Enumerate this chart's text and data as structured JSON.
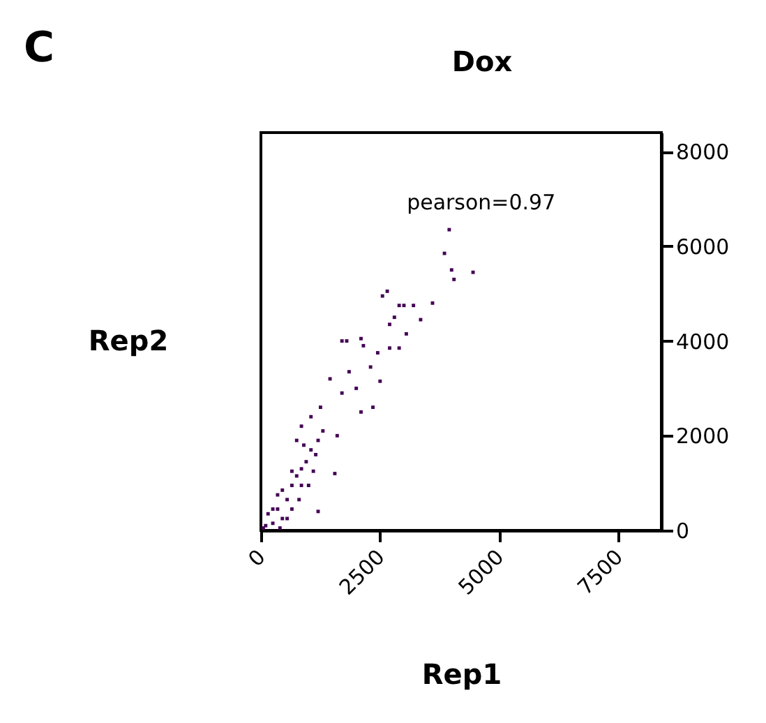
{
  "chart_data": {
    "type": "scatter",
    "title": "Dox",
    "xlabel": "Rep1",
    "ylabel": "Rep2",
    "annotations": [
      "C",
      "pearson=0.97"
    ],
    "x": [
      3950,
      3850,
      4000,
      4050,
      4450,
      3600,
      3350,
      3200,
      2900,
      3000,
      2650,
      2550,
      2800,
      2700,
      3050,
      2900,
      2700,
      2100,
      2150,
      1800,
      1700,
      2450,
      2300,
      2500,
      2350,
      2100,
      2000,
      1850,
      1450,
      1700,
      1550,
      1200,
      1250,
      1050,
      1600,
      850,
      250,
      150,
      350,
      550,
      450,
      650,
      750,
      850,
      950,
      1050,
      650,
      850,
      1100,
      1150,
      750,
      900,
      1200,
      550,
      100,
      50,
      400,
      250,
      650,
      1000,
      1300,
      450,
      800,
      350
    ],
    "series": [
      {
        "color": "#440154",
        "values": [
          6350,
          5850,
          5500,
          5300,
          5450,
          4800,
          4450,
          4750,
          4750,
          4750,
          5050,
          4950,
          4500,
          4350,
          4150,
          3850,
          3850,
          4050,
          3900,
          4000,
          4000,
          3750,
          3450,
          3150,
          2600,
          2500,
          3000,
          3350,
          3200,
          2900,
          1200,
          400,
          2600,
          2400,
          2000,
          2200,
          150,
          350,
          450,
          650,
          850,
          950,
          1150,
          1300,
          1450,
          1700,
          1250,
          950,
          1250,
          1600,
          1900,
          1800,
          1900,
          250,
          100,
          50,
          50,
          450,
          450,
          950,
          2100,
          250,
          650,
          750
        ]
      }
    ],
    "xlim": [
      0,
      8400
    ],
    "ylim": [
      0,
      8400
    ],
    "xticks": [
      0,
      2500,
      5000,
      7500
    ],
    "yticks": [
      0,
      2000,
      4000,
      6000,
      8000
    ],
    "marker": "square",
    "grid": false
  }
}
